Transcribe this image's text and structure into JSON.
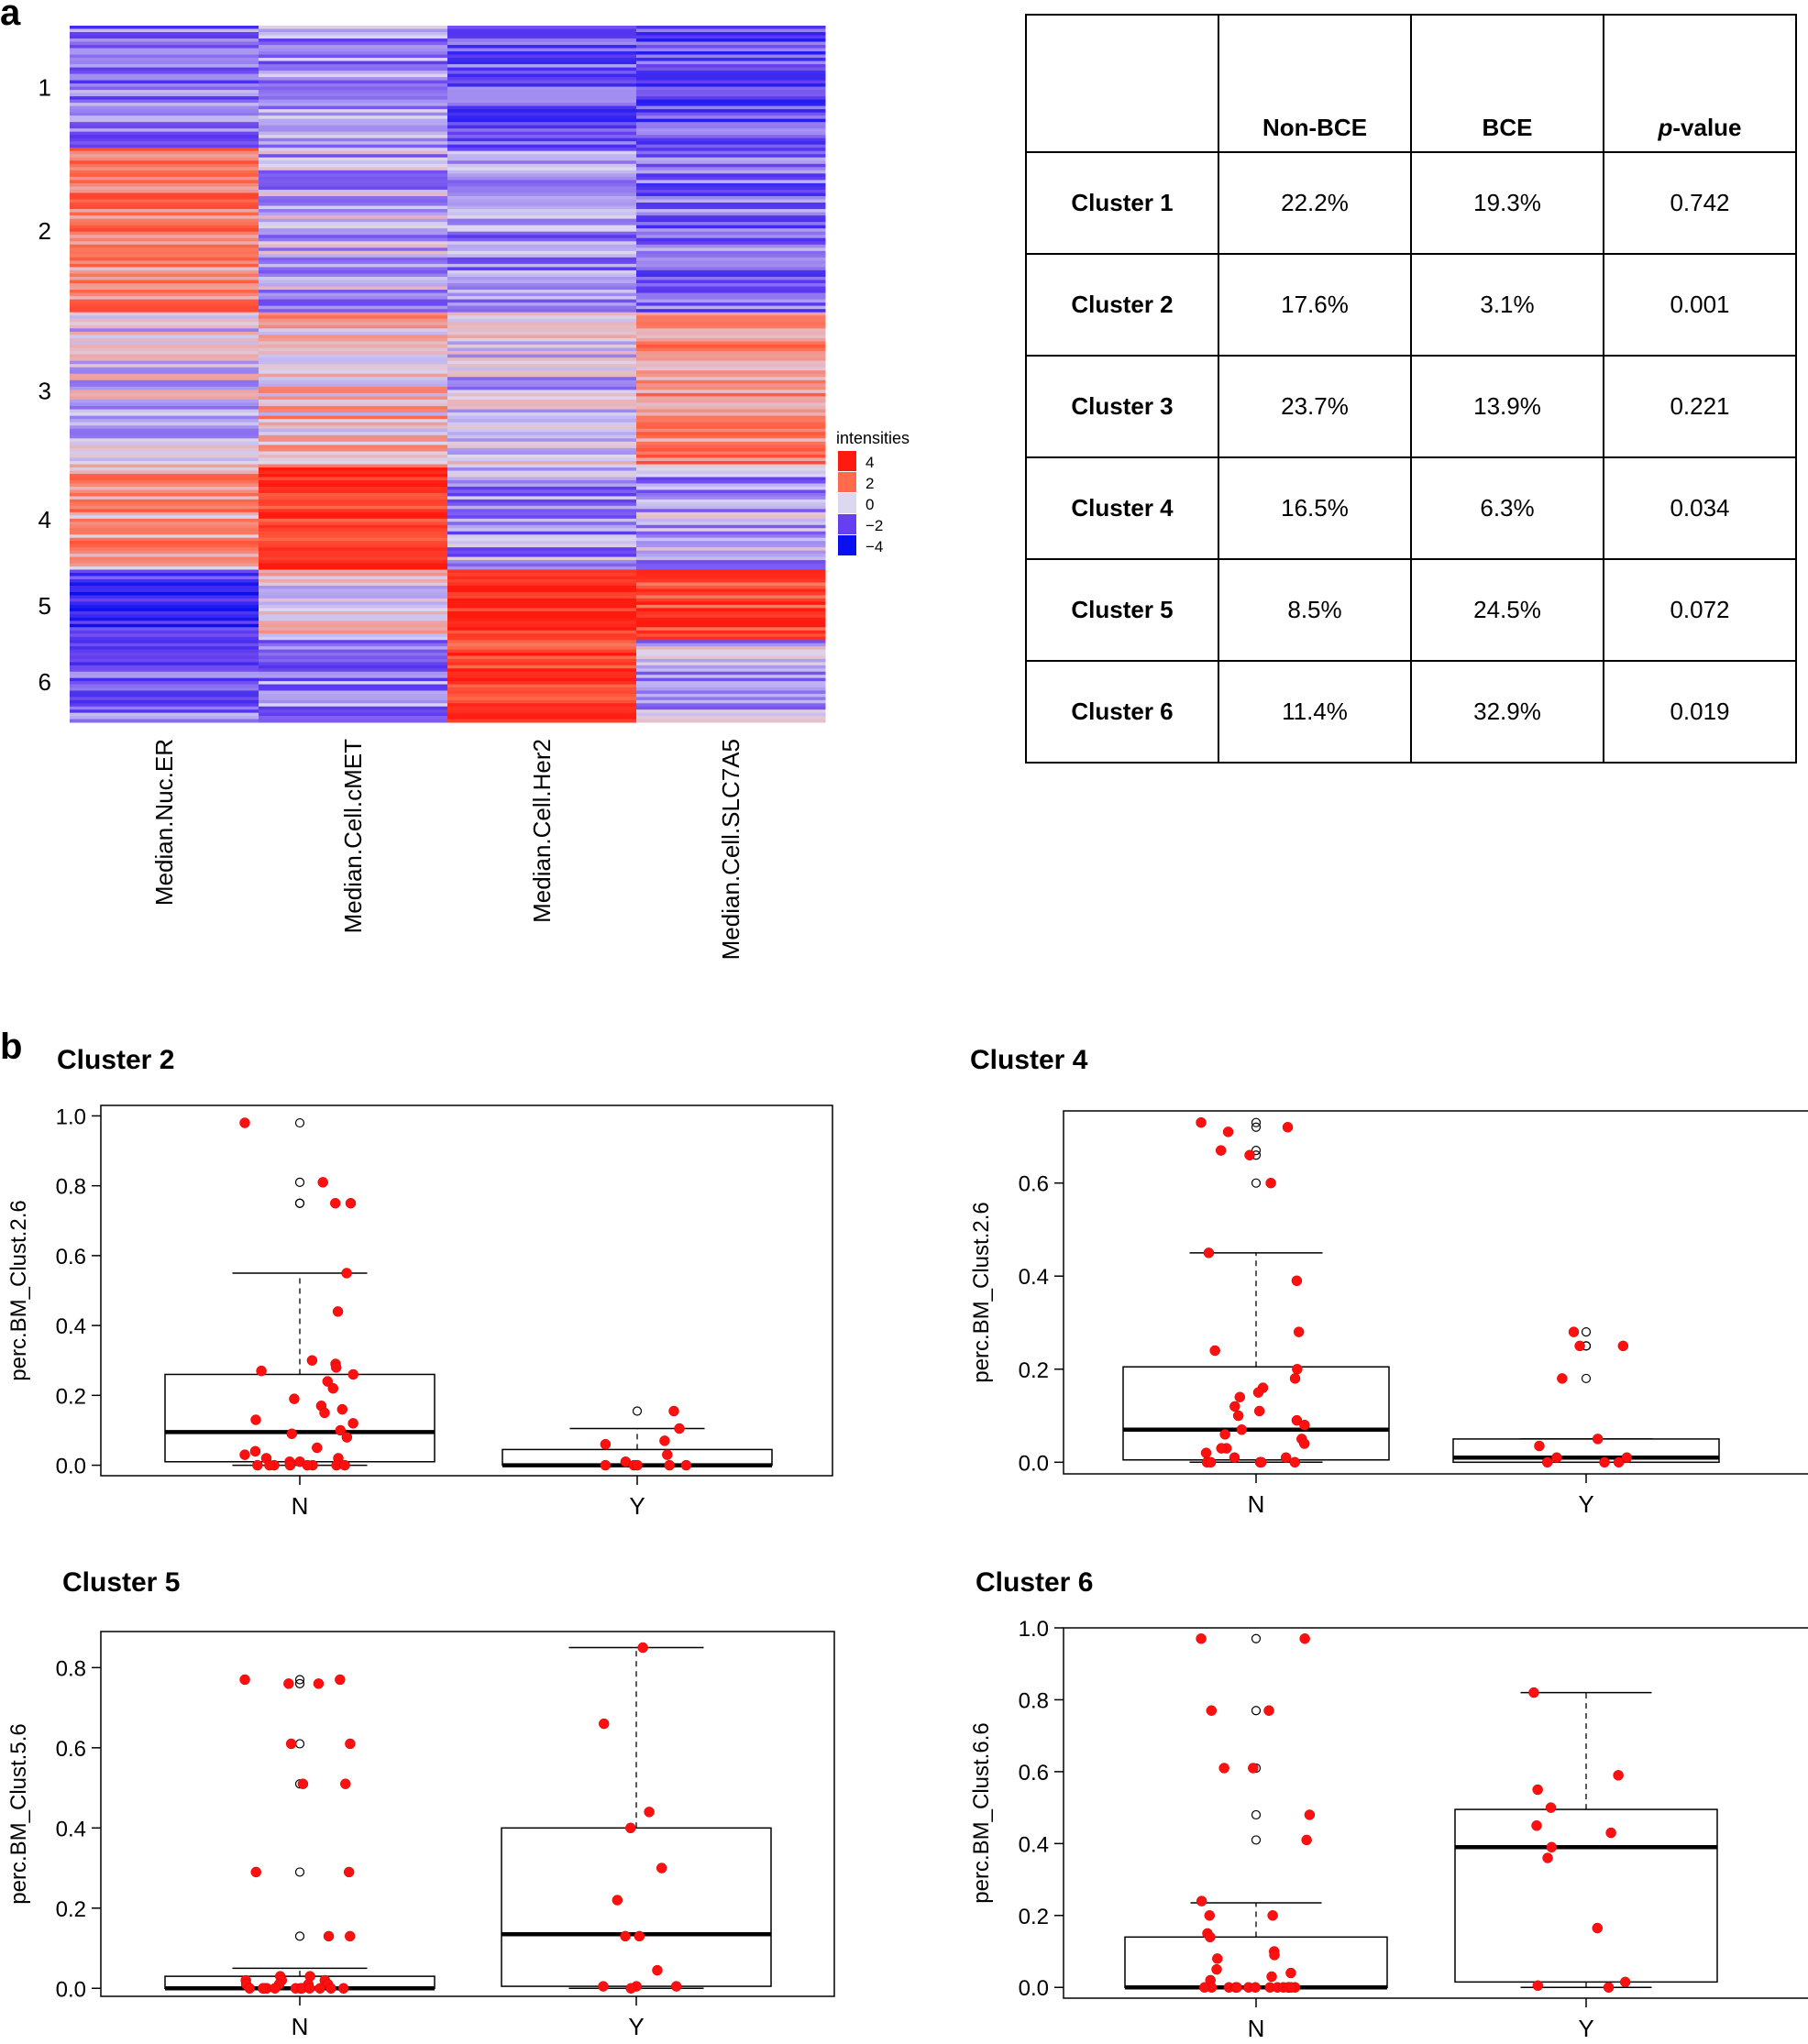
{
  "panel_a_label": "a",
  "panel_b_label": "b",
  "heatmap": {
    "columns": [
      "Median.Nuc.ER",
      "Median.Cell.cMET",
      "Median.Cell.Her2",
      "Median.Cell.SLC7A5"
    ],
    "clusters": [
      "1",
      "2",
      "3",
      "4",
      "5",
      "6"
    ],
    "cluster_row_weights": [
      92,
      124,
      117,
      77,
      53,
      62
    ],
    "cluster_means": [
      [
        -1.5,
        -1.0,
        -2.0,
        -2.2
      ],
      [
        1.7,
        -0.6,
        -1.2,
        -1.6
      ],
      [
        -0.2,
        0.7,
        -0.3,
        1.5
      ],
      [
        1.3,
        3.2,
        -1.0,
        -0.8
      ],
      [
        -2.8,
        0.4,
        3.3,
        3.0
      ],
      [
        -1.6,
        -1.2,
        3.0,
        -0.5
      ]
    ],
    "legend": {
      "title": "intensities",
      "labels": [
        "4",
        "2",
        "0",
        "−2",
        "−4"
      ],
      "colors": [
        "#ff1a10",
        "#ff6a4c",
        "#dcd8f0",
        "#6640f0",
        "#0a10f0"
      ]
    }
  },
  "table": {
    "headers": [
      "",
      "Non-BCE",
      "BCE",
      "p-value"
    ],
    "p_italic": "p",
    "p_rest": "-value",
    "rows": [
      [
        "Cluster 1",
        "22.2%",
        "19.3%",
        "0.742"
      ],
      [
        "Cluster 2",
        "17.6%",
        "3.1%",
        "0.001"
      ],
      [
        "Cluster 3",
        "23.7%",
        "13.9%",
        "0.221"
      ],
      [
        "Cluster 4",
        "16.5%",
        "6.3%",
        "0.034"
      ],
      [
        "Cluster 5",
        "8.5%",
        "24.5%",
        "0.072"
      ],
      [
        "Cluster 6",
        "11.4%",
        "32.9%",
        "0.019"
      ]
    ]
  },
  "chart_data": [
    {
      "type": "box",
      "title": "Cluster 2",
      "ylabel": "perc.BM_Clust.2.6",
      "categories": [
        "N",
        "Y"
      ],
      "ylim": [
        -0.03,
        1.03
      ],
      "yticks": [
        0.0,
        0.2,
        0.4,
        0.6,
        0.8,
        1.0
      ],
      "ytick_labels": [
        "0.0",
        "0.2",
        "0.4",
        "0.6",
        "0.8",
        "1.0"
      ],
      "boxes": [
        {
          "whisker_low": 0.0,
          "q1": 0.01,
          "median": 0.095,
          "q3": 0.26,
          "whisker_high": 0.55
        },
        {
          "whisker_low": 0.0,
          "q1": 0.0,
          "median": 0.0,
          "q3": 0.045,
          "whisker_high": 0.105
        }
      ],
      "outliers": [
        [
          0.98,
          0.81,
          0.75,
          0.75
        ],
        [
          0.155
        ]
      ],
      "points": [
        [
          0.98,
          0.81,
          0.75,
          0.75,
          0.55,
          0.44,
          0.3,
          0.29,
          0.28,
          0.27,
          0.26,
          0.24,
          0.22,
          0.19,
          0.17,
          0.16,
          0.15,
          0.13,
          0.12,
          0.1,
          0.09,
          0.08,
          0.05,
          0.04,
          0.03,
          0.02,
          0.02,
          0.01,
          0.01,
          0.0,
          0.0,
          0.0,
          0.0,
          0.0,
          0.0,
          0.0,
          0.0
        ],
        [
          0.155,
          0.105,
          0.07,
          0.06,
          0.03,
          0.01,
          0.0,
          0.0,
          0.0,
          0.0,
          0.0
        ]
      ]
    },
    {
      "type": "box",
      "title": "Cluster 4",
      "ylabel": "perc.BM_Clust.2.6",
      "categories": [
        "N",
        "Y"
      ],
      "ylim": [
        -0.025,
        0.755
      ],
      "yticks": [
        0.0,
        0.2,
        0.4,
        0.6
      ],
      "ytick_labels": [
        "0.0",
        "0.2",
        "0.4",
        "0.6"
      ],
      "boxes": [
        {
          "whisker_low": 0.0,
          "q1": 0.005,
          "median": 0.07,
          "q3": 0.205,
          "whisker_high": 0.45
        },
        {
          "whisker_low": 0.0,
          "q1": 0.0,
          "median": 0.01,
          "q3": 0.05,
          "whisker_high": 0.05
        }
      ],
      "outliers": [
        [
          0.73,
          0.72,
          0.67,
          0.66,
          0.6
        ],
        [
          0.28,
          0.25,
          0.25,
          0.18
        ]
      ],
      "points": [
        [
          0.73,
          0.72,
          0.71,
          0.67,
          0.66,
          0.6,
          0.45,
          0.39,
          0.28,
          0.24,
          0.2,
          0.18,
          0.16,
          0.15,
          0.14,
          0.12,
          0.11,
          0.1,
          0.09,
          0.08,
          0.07,
          0.06,
          0.05,
          0.04,
          0.03,
          0.03,
          0.02,
          0.01,
          0.01,
          0.0,
          0.0,
          0.0,
          0.0,
          0.0
        ],
        [
          0.28,
          0.25,
          0.25,
          0.18,
          0.05,
          0.035,
          0.01,
          0.01,
          0.0,
          0.0,
          0.0
        ]
      ]
    },
    {
      "type": "box",
      "title": "Cluster 5",
      "ylabel": "perc.BM_Clust.5.6",
      "categories": [
        "N",
        "Y"
      ],
      "ylim": [
        -0.02,
        0.89
      ],
      "yticks": [
        0.0,
        0.2,
        0.4,
        0.6,
        0.8
      ],
      "ytick_labels": [
        "0.0",
        "0.2",
        "0.4",
        "0.6",
        "0.8"
      ],
      "boxes": [
        {
          "whisker_low": 0.0,
          "q1": 0.0,
          "median": 0.0,
          "q3": 0.03,
          "whisker_high": 0.05
        },
        {
          "whisker_low": 0.0,
          "q1": 0.005,
          "median": 0.135,
          "q3": 0.4,
          "whisker_high": 0.85
        }
      ],
      "outliers": [
        [
          0.77,
          0.76,
          0.61,
          0.51,
          0.29,
          0.13
        ],
        []
      ],
      "points": [
        [
          0.77,
          0.77,
          0.76,
          0.76,
          0.61,
          0.61,
          0.51,
          0.51,
          0.29,
          0.29,
          0.13,
          0.13,
          0.03,
          0.03,
          0.02,
          0.02,
          0.02,
          0.01,
          0.01,
          0.01,
          0.01,
          0.0,
          0.0,
          0.0,
          0.0,
          0.0,
          0.0,
          0.0,
          0.0,
          0.0,
          0.0,
          0.0,
          0.0
        ],
        [
          0.85,
          0.66,
          0.44,
          0.4,
          0.3,
          0.22,
          0.13,
          0.13,
          0.045,
          0.005,
          0.005,
          0.005,
          0.0
        ]
      ]
    },
    {
      "type": "box",
      "title": "Cluster 6",
      "ylabel": "perc.BM_Clust.6.6",
      "categories": [
        "N",
        "Y"
      ],
      "ylim": [
        -0.03,
        1.0
      ],
      "yticks": [
        0.0,
        0.2,
        0.4,
        0.6,
        0.8,
        1.0
      ],
      "ytick_labels": [
        "0.0",
        "0.2",
        "0.4",
        "0.6",
        "0.8",
        "1.0"
      ],
      "boxes": [
        {
          "whisker_low": 0.0,
          "q1": 0.0,
          "median": 0.0,
          "q3": 0.14,
          "whisker_high": 0.235
        },
        {
          "whisker_low": 0.0,
          "q1": 0.015,
          "median": 0.39,
          "q3": 0.495,
          "whisker_high": 0.82
        }
      ],
      "outliers": [
        [
          0.97,
          0.77,
          0.61,
          0.48,
          0.41
        ],
        []
      ],
      "points": [
        [
          0.97,
          0.97,
          0.77,
          0.77,
          0.61,
          0.61,
          0.48,
          0.41,
          0.24,
          0.2,
          0.2,
          0.15,
          0.14,
          0.1,
          0.09,
          0.08,
          0.05,
          0.04,
          0.03,
          0.02,
          0.0,
          0.0,
          0.0,
          0.0,
          0.0,
          0.0,
          0.0,
          0.0,
          0.0,
          0.0,
          0.0,
          0.0,
          0.0,
          0.0
        ],
        [
          0.82,
          0.59,
          0.55,
          0.5,
          0.45,
          0.43,
          0.39,
          0.36,
          0.165,
          0.015,
          0.005,
          0.0
        ]
      ]
    }
  ]
}
